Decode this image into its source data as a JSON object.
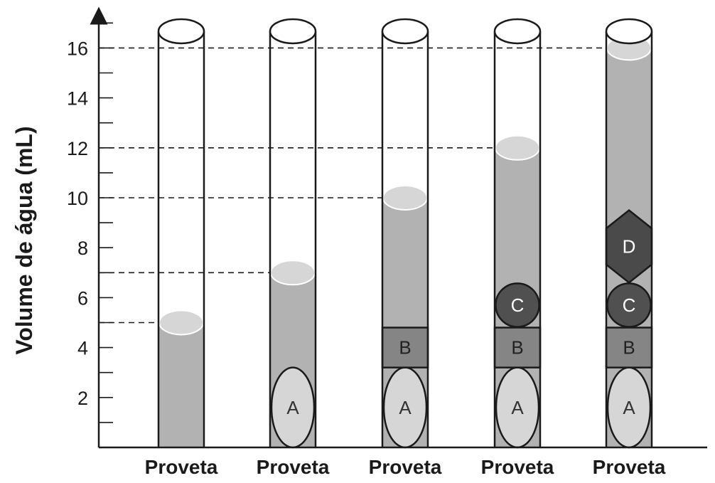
{
  "axis": {
    "title": "Volume de água (mL)",
    "min": 0,
    "max": 17.5,
    "ticks": [
      2,
      4,
      6,
      8,
      10,
      12,
      14,
      16
    ]
  },
  "cylinders": [
    {
      "label": "Proveta",
      "level": 5,
      "objects": []
    },
    {
      "label": "Proveta",
      "level": 7,
      "objects": [
        "A"
      ]
    },
    {
      "label": "Proveta",
      "level": 10,
      "objects": [
        "A",
        "B"
      ]
    },
    {
      "label": "Proveta",
      "level": 12,
      "objects": [
        "A",
        "B",
        "C"
      ]
    },
    {
      "label": "Proveta",
      "level": 16,
      "objects": [
        "A",
        "B",
        "C",
        "D"
      ]
    }
  ],
  "objects": {
    "A": {
      "label": "A",
      "shape": "ellipse",
      "bottom": 0,
      "top": 3.2,
      "fill": "#d6d6d6",
      "text_color": "#333333"
    },
    "B": {
      "label": "B",
      "shape": "rectangle",
      "bottom": 3.2,
      "top": 4.8,
      "fill": "#858585",
      "text_color": "#222222"
    },
    "C": {
      "label": "C",
      "shape": "circle",
      "bottom": 4.8,
      "top": 6.6,
      "fill": "#505050",
      "text_color": "#ffffff"
    },
    "D": {
      "label": "D",
      "shape": "hexagon",
      "bottom": 6.6,
      "top": 9.5,
      "fill": "#4a4a4a",
      "text_color": "#ffffff"
    }
  },
  "colors": {
    "water": "#b2b2b2",
    "meniscus": "#d6d6d6",
    "outline": "#1a1a1a"
  }
}
